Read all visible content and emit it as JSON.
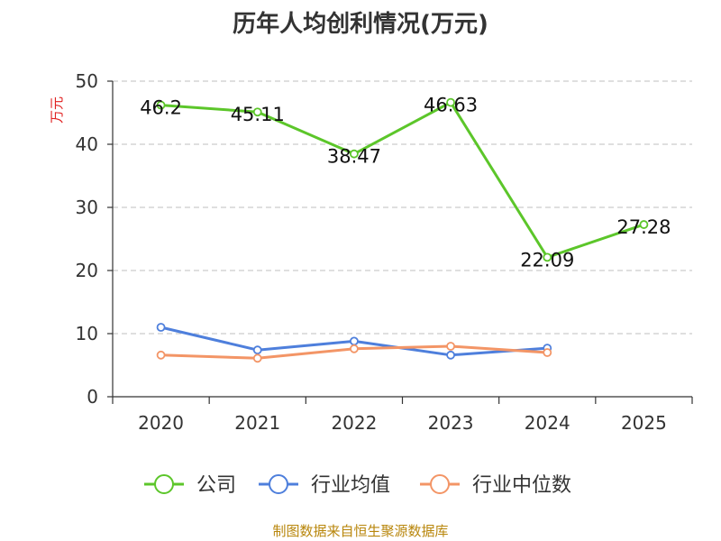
{
  "chart_data": {
    "type": "line",
    "title": "历年人均创利情况(万元)",
    "ylabel": "万元",
    "xlabel": "",
    "categories": [
      "2020",
      "2021",
      "2022",
      "2023",
      "2024",
      "2025"
    ],
    "ylim": [
      0,
      50
    ],
    "yticks": [
      0,
      10,
      20,
      30,
      40,
      50
    ],
    "grid": true,
    "legend_position": "bottom",
    "series": [
      {
        "name": "公司",
        "color": "#5cc62a",
        "values": [
          46.2,
          45.11,
          38.47,
          46.63,
          22.09,
          27.28
        ],
        "labels": [
          "46.2",
          "45.11",
          "38.47",
          "46.63",
          "22.09",
          "27.28"
        ]
      },
      {
        "name": "行业均值",
        "color": "#4e7fdc",
        "values": [
          11.0,
          7.4,
          8.8,
          6.6,
          7.7,
          null
        ]
      },
      {
        "name": "行业中位数",
        "color": "#f39566",
        "values": [
          6.6,
          6.1,
          7.6,
          8.0,
          7.0,
          null
        ]
      }
    ]
  },
  "source": "制图数据来自恒生聚源数据库"
}
